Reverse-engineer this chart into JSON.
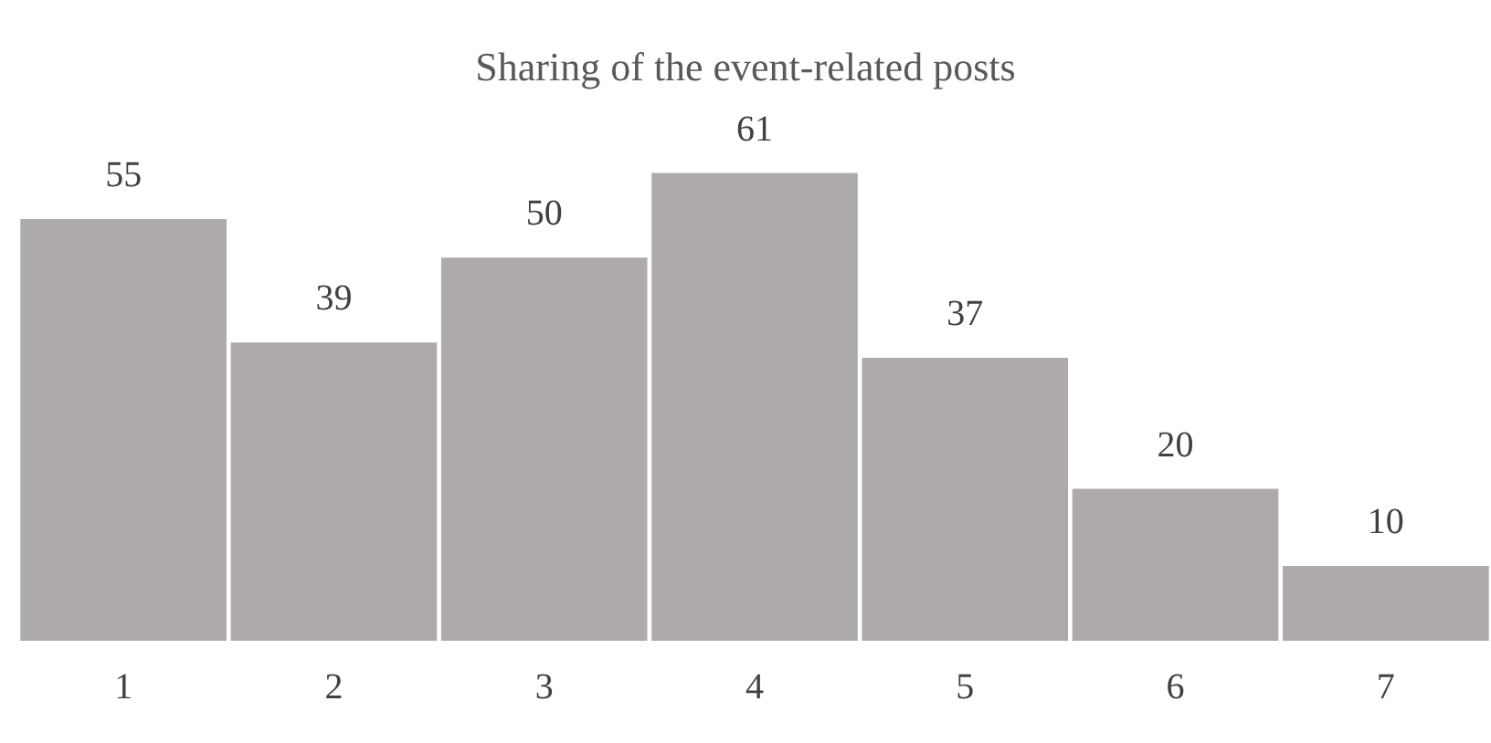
{
  "chart_data": {
    "type": "bar",
    "title": "Sharing of the event-related posts",
    "categories": [
      "1",
      "2",
      "3",
      "4",
      "5",
      "6",
      "7"
    ],
    "values": [
      55,
      39,
      50,
      61,
      37,
      20,
      10
    ],
    "color": "#aeaaaa",
    "data_labels": true,
    "grid": false,
    "legend": false
  }
}
